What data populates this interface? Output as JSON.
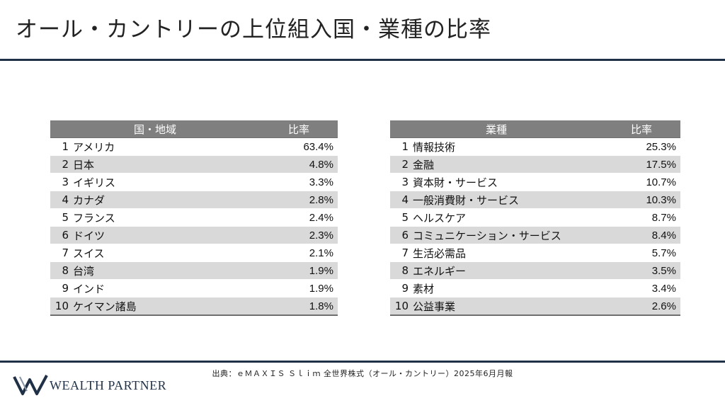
{
  "title": "オール・カントリーの上位組入国・業種の比率",
  "countries": {
    "header_name": "国・地域",
    "header_value": "比率",
    "rows": [
      {
        "rank": "1",
        "name": "アメリカ",
        "value": "63.4%"
      },
      {
        "rank": "2",
        "name": "日本",
        "value": "4.8%"
      },
      {
        "rank": "3",
        "name": "イギリス",
        "value": "3.3%"
      },
      {
        "rank": "4",
        "name": "カナダ",
        "value": "2.8%"
      },
      {
        "rank": "5",
        "name": "フランス",
        "value": "2.4%"
      },
      {
        "rank": "6",
        "name": "ドイツ",
        "value": "2.3%"
      },
      {
        "rank": "7",
        "name": "スイス",
        "value": "2.1%"
      },
      {
        "rank": "8",
        "name": "台湾",
        "value": "1.9%"
      },
      {
        "rank": "9",
        "name": "インド",
        "value": "1.9%"
      },
      {
        "rank": "10",
        "name": "ケイマン諸島",
        "value": "1.8%"
      }
    ]
  },
  "sectors": {
    "header_name": "業種",
    "header_value": "比率",
    "rows": [
      {
        "rank": "1",
        "name": "情報技術",
        "value": "25.3%"
      },
      {
        "rank": "2",
        "name": "金融",
        "value": "17.5%"
      },
      {
        "rank": "3",
        "name": "資本財・サービス",
        "value": "10.7%"
      },
      {
        "rank": "4",
        "name": "一般消費財・サービス",
        "value": "10.3%"
      },
      {
        "rank": "5",
        "name": "ヘルスケア",
        "value": "8.7%"
      },
      {
        "rank": "6",
        "name": "コミュニケーション・サービス",
        "value": "8.4%"
      },
      {
        "rank": "7",
        "name": "生活必需品",
        "value": "5.7%"
      },
      {
        "rank": "8",
        "name": "エネルギー",
        "value": "3.5%"
      },
      {
        "rank": "9",
        "name": "素材",
        "value": "3.4%"
      },
      {
        "rank": "10",
        "name": "公益事業",
        "value": "2.6%"
      }
    ]
  },
  "source": "出典：ｅＭＡＸＩＳ Ｓｌｉｍ 全世界株式（オール・カントリー）2025年6月月報",
  "logo": {
    "text": "WEALTH PARTNER",
    "icon": "wp-logo-icon",
    "color": "#1f3047"
  }
}
